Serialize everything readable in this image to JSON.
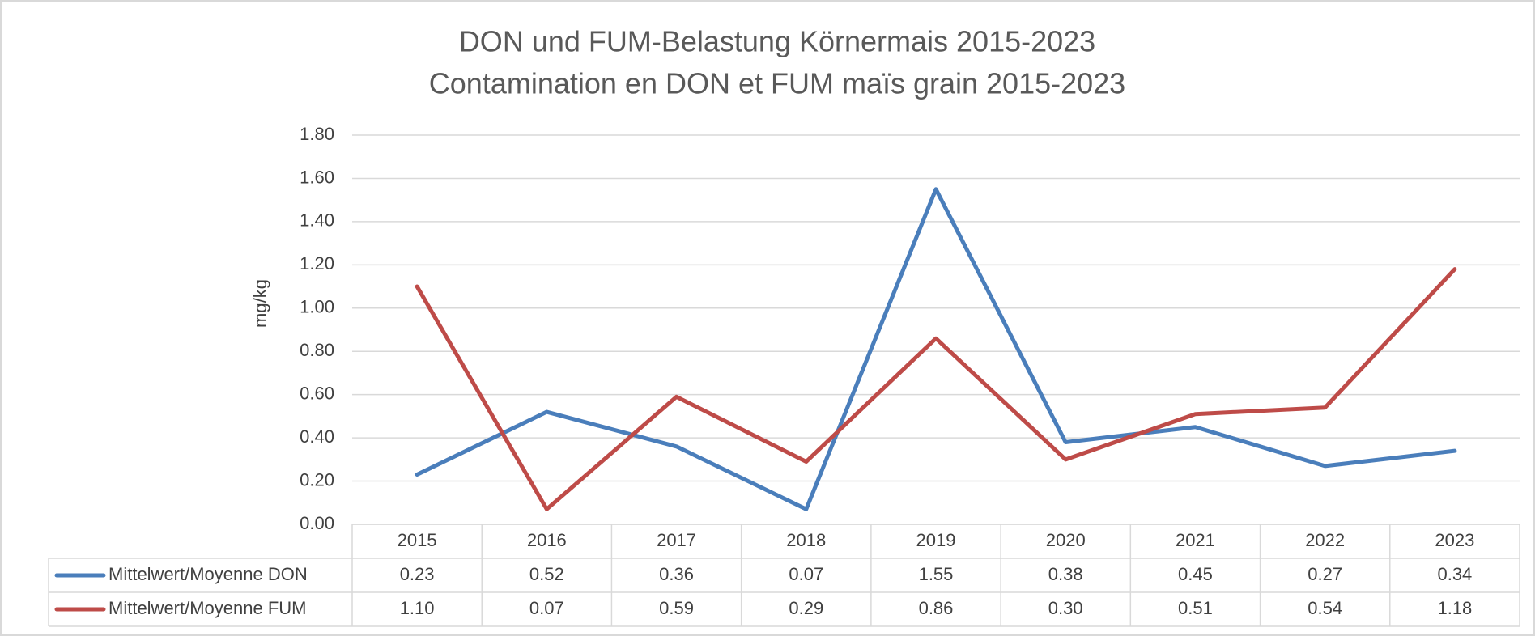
{
  "chart_data": {
    "type": "line",
    "title": "DON und FUM-Belastung Körnermais 2015-2023",
    "subtitle": "Contamination en DON et FUM maïs grain 2015-2023",
    "y_label": "mg/kg",
    "categories": [
      "2015",
      "2016",
      "2017",
      "2018",
      "2019",
      "2020",
      "2021",
      "2022",
      "2023"
    ],
    "series": [
      {
        "name": "Mittelwert/Moyenne DON",
        "color": "#4a7ebb",
        "values": [
          0.23,
          0.52,
          0.36,
          0.07,
          1.55,
          0.38,
          0.45,
          0.27,
          0.34
        ],
        "value_labels": [
          "0.23",
          "0.52",
          "0.36",
          "0.07",
          "1.55",
          "0.38",
          "0.45",
          "0.27",
          "0.34"
        ]
      },
      {
        "name": "Mittelwert/Moyenne FUM",
        "color": "#be4b48",
        "values": [
          1.1,
          0.07,
          0.59,
          0.29,
          0.86,
          0.3,
          0.51,
          0.54,
          1.18
        ],
        "value_labels": [
          "1.10",
          "0.07",
          "0.59",
          "0.29",
          "0.86",
          "0.30",
          "0.51",
          "0.54",
          "1.18"
        ]
      }
    ],
    "ylim": [
      0,
      1.8
    ],
    "yticks": [
      {
        "value": 0,
        "label": "0.00"
      },
      {
        "value": 0.2,
        "label": "0.20"
      },
      {
        "value": 0.4,
        "label": "0.40"
      },
      {
        "value": 0.6,
        "label": "0.60"
      },
      {
        "value": 0.8,
        "label": "0.80"
      },
      {
        "value": 1,
        "label": "1.00"
      },
      {
        "value": 1.2,
        "label": "1.20"
      },
      {
        "value": 1.4,
        "label": "1.40"
      },
      {
        "value": 1.6,
        "label": "1.60"
      },
      {
        "value": 1.8,
        "label": "1.80"
      }
    ],
    "grid": true,
    "data_table": true
  }
}
